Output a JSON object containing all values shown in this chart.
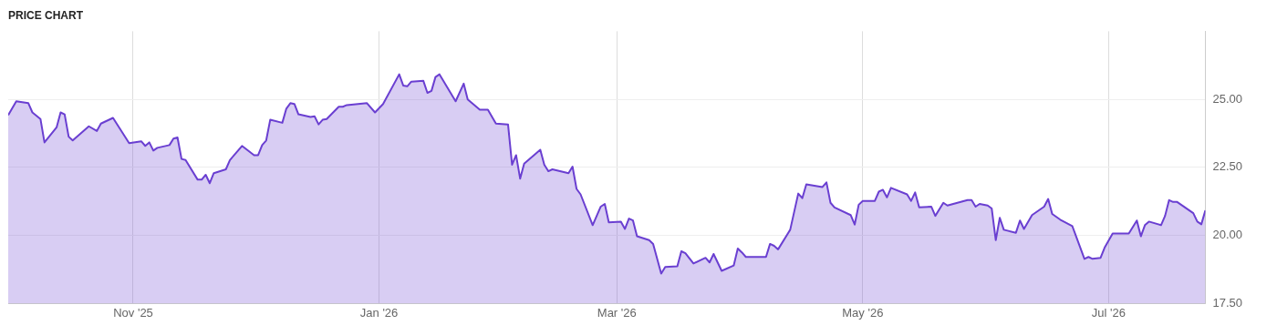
{
  "chart_data": {
    "type": "area",
    "title": "PRICE CHART",
    "x": [
      "2025-10-01",
      "2025-10-03",
      "2025-10-06",
      "2025-10-07",
      "2025-10-09",
      "2025-10-10",
      "2025-10-13",
      "2025-10-14",
      "2025-10-15",
      "2025-10-16",
      "2025-10-17",
      "2025-10-21",
      "2025-10-23",
      "2025-10-24",
      "2025-10-27",
      "2025-10-31",
      "2025-11-03",
      "2025-11-04",
      "2025-11-05",
      "2025-11-06",
      "2025-11-07",
      "2025-11-10",
      "2025-11-11",
      "2025-11-12",
      "2025-11-13",
      "2025-11-14",
      "2025-11-17",
      "2025-11-18",
      "2025-11-19",
      "2025-11-20",
      "2025-11-21",
      "2025-11-24",
      "2025-11-25",
      "2025-11-28",
      "2025-12-01",
      "2025-12-02",
      "2025-12-03",
      "2025-12-04",
      "2025-12-05",
      "2025-12-08",
      "2025-12-09",
      "2025-12-10",
      "2025-12-11",
      "2025-12-12",
      "2025-12-15",
      "2025-12-16",
      "2025-12-17",
      "2025-12-18",
      "2025-12-19",
      "2025-12-22",
      "2025-12-23",
      "2025-12-24",
      "2025-12-29",
      "2025-12-31",
      "2026-01-02",
      "2026-01-06",
      "2026-01-07",
      "2026-01-08",
      "2026-01-09",
      "2026-01-12",
      "2026-01-13",
      "2026-01-14",
      "2026-01-15",
      "2026-01-16",
      "2026-01-20",
      "2026-01-22",
      "2026-01-23",
      "2026-01-26",
      "2026-01-28",
      "2026-01-30",
      "2026-02-02",
      "2026-02-03",
      "2026-02-04",
      "2026-02-05",
      "2026-02-06",
      "2026-02-10",
      "2026-02-11",
      "2026-02-12",
      "2026-02-13",
      "2026-02-17",
      "2026-02-18",
      "2026-02-19",
      "2026-02-20",
      "2026-02-23",
      "2026-02-25",
      "2026-02-26",
      "2026-02-27",
      "2026-03-02",
      "2026-03-03",
      "2026-03-04",
      "2026-03-05",
      "2026-03-06",
      "2026-03-09",
      "2026-03-10",
      "2026-03-12",
      "2026-03-13",
      "2026-03-16",
      "2026-03-17",
      "2026-03-18",
      "2026-03-20",
      "2026-03-23",
      "2026-03-24",
      "2026-03-25",
      "2026-03-27",
      "2026-03-30",
      "2026-03-31",
      "2026-04-01",
      "2026-04-02",
      "2026-04-07",
      "2026-04-08",
      "2026-04-09",
      "2026-04-10",
      "2026-04-13",
      "2026-04-15",
      "2026-04-16",
      "2026-04-17",
      "2026-04-21",
      "2026-04-22",
      "2026-04-23",
      "2026-04-24",
      "2026-04-28",
      "2026-04-29",
      "2026-04-30",
      "2026-05-01",
      "2026-05-04",
      "2026-05-05",
      "2026-05-06",
      "2026-05-07",
      "2026-05-08",
      "2026-05-12",
      "2026-05-13",
      "2026-05-14",
      "2026-05-15",
      "2026-05-18",
      "2026-05-19",
      "2026-05-21",
      "2026-05-22",
      "2026-05-27",
      "2026-05-28",
      "2026-05-29",
      "2026-05-30",
      "2026-06-01",
      "2026-06-02",
      "2026-06-03",
      "2026-06-04",
      "2026-06-05",
      "2026-06-08",
      "2026-06-09",
      "2026-06-10",
      "2026-06-12",
      "2026-06-15",
      "2026-06-16",
      "2026-06-17",
      "2026-06-19",
      "2026-06-22",
      "2026-06-25",
      "2026-06-26",
      "2026-06-27",
      "2026-06-29",
      "2026-06-30",
      "2026-07-02",
      "2026-07-06",
      "2026-07-08",
      "2026-07-09",
      "2026-07-10",
      "2026-07-11",
      "2026-07-14",
      "2026-07-15",
      "2026-07-16",
      "2026-07-17",
      "2026-07-18",
      "2026-07-22",
      "2026-07-23",
      "2026-07-24",
      "2026-07-25"
    ],
    "series": [
      {
        "color": "#6a3fd1",
        "values": [
          24.42,
          24.93,
          24.86,
          24.52,
          24.28,
          23.42,
          23.97,
          24.52,
          24.45,
          23.63,
          23.49,
          24.01,
          23.84,
          24.11,
          24.32,
          23.39,
          23.46,
          23.29,
          23.42,
          23.12,
          23.22,
          23.32,
          23.56,
          23.6,
          22.81,
          22.77,
          22.05,
          22.05,
          22.23,
          21.92,
          22.29,
          22.43,
          22.77,
          23.29,
          22.95,
          22.95,
          23.32,
          23.49,
          24.25,
          24.14,
          24.66,
          24.86,
          24.83,
          24.45,
          24.35,
          24.38,
          24.08,
          24.25,
          24.28,
          24.73,
          24.73,
          24.79,
          24.86,
          24.52,
          24.83,
          25.92,
          25.51,
          25.48,
          25.65,
          25.68,
          25.24,
          25.31,
          25.82,
          25.92,
          24.93,
          25.58,
          25.0,
          24.62,
          24.62,
          24.11,
          24.08,
          22.6,
          22.95,
          22.09,
          22.64,
          23.15,
          22.6,
          22.36,
          22.43,
          22.29,
          22.53,
          21.71,
          21.51,
          20.38,
          21.06,
          21.16,
          20.48,
          20.51,
          20.24,
          20.62,
          20.55,
          19.97,
          19.83,
          19.69,
          18.6,
          18.84,
          18.87,
          19.42,
          19.35,
          18.97,
          19.18,
          19.01,
          19.32,
          18.7,
          18.9,
          19.52,
          19.38,
          19.21,
          19.21,
          19.69,
          19.62,
          19.49,
          20.21,
          21.54,
          21.37,
          21.88,
          21.78,
          21.95,
          21.2,
          21.03,
          20.75,
          20.4,
          21.13,
          21.27,
          21.27,
          21.61,
          21.68,
          21.4,
          21.75,
          21.51,
          21.27,
          21.58,
          21.03,
          21.06,
          20.72,
          21.2,
          21.1,
          21.3,
          21.3,
          21.06,
          21.16,
          21.1,
          20.99,
          19.83,
          20.65,
          20.21,
          20.1,
          20.55,
          20.24,
          20.75,
          21.06,
          21.34,
          20.79,
          20.58,
          20.34,
          19.14,
          19.21,
          19.14,
          19.18,
          19.55,
          20.07,
          20.07,
          20.55,
          19.97,
          20.38,
          20.51,
          20.38,
          20.72,
          21.3,
          21.23,
          21.23,
          20.82,
          20.51,
          20.41,
          20.92
        ]
      }
    ],
    "xlim": [
      "2025-10-01",
      "2026-07-25"
    ],
    "xticks": [
      {
        "value": "2025-11-01",
        "label": "Nov '25"
      },
      {
        "value": "2026-01-01",
        "label": "Jan '26"
      },
      {
        "value": "2026-03-01",
        "label": "Mar '26"
      },
      {
        "value": "2026-05-01",
        "label": "May '26"
      },
      {
        "value": "2026-07-01",
        "label": "Jul '26"
      }
    ],
    "ylim": [
      17.5,
      27.5
    ],
    "yticks": [
      {
        "value": 17.5,
        "label": "17.50"
      },
      {
        "value": 20,
        "label": "20.00"
      },
      {
        "value": 22.5,
        "label": "22.50"
      },
      {
        "value": 25,
        "label": "25.00"
      }
    ],
    "grid": true,
    "legend": false,
    "marker": "none",
    "line_style": "solid"
  }
}
